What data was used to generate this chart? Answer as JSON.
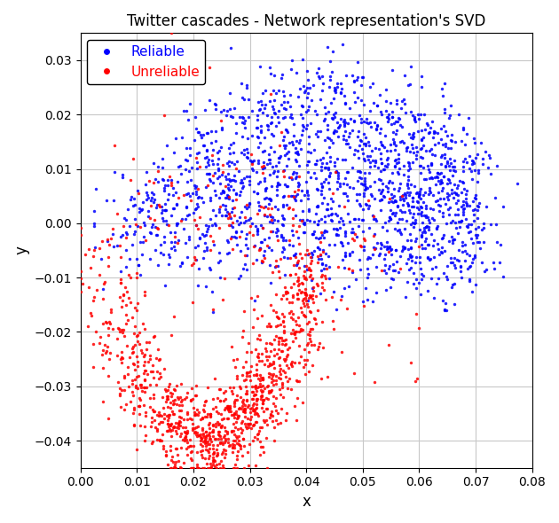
{
  "title": "Twitter cascades - Network representation's SVD",
  "xlabel": "x",
  "ylabel": "y",
  "xlim": [
    0.0,
    0.08
  ],
  "ylim": [
    -0.045,
    0.035
  ],
  "xticks": [
    0.0,
    0.01,
    0.02,
    0.03,
    0.04,
    0.05,
    0.06,
    0.07,
    0.08
  ],
  "yticks": [
    -0.04,
    -0.03,
    -0.02,
    -0.01,
    0.0,
    0.01,
    0.02,
    0.03
  ],
  "reliable_color": "#0000FF",
  "unreliable_color": "#FF0000",
  "reliable_label": "Reliable",
  "unreliable_label": "Unreliable",
  "dot_size": 6,
  "alpha": 0.85,
  "background_color": "#ffffff",
  "grid_color": "#c8c8c8",
  "seed": 42
}
